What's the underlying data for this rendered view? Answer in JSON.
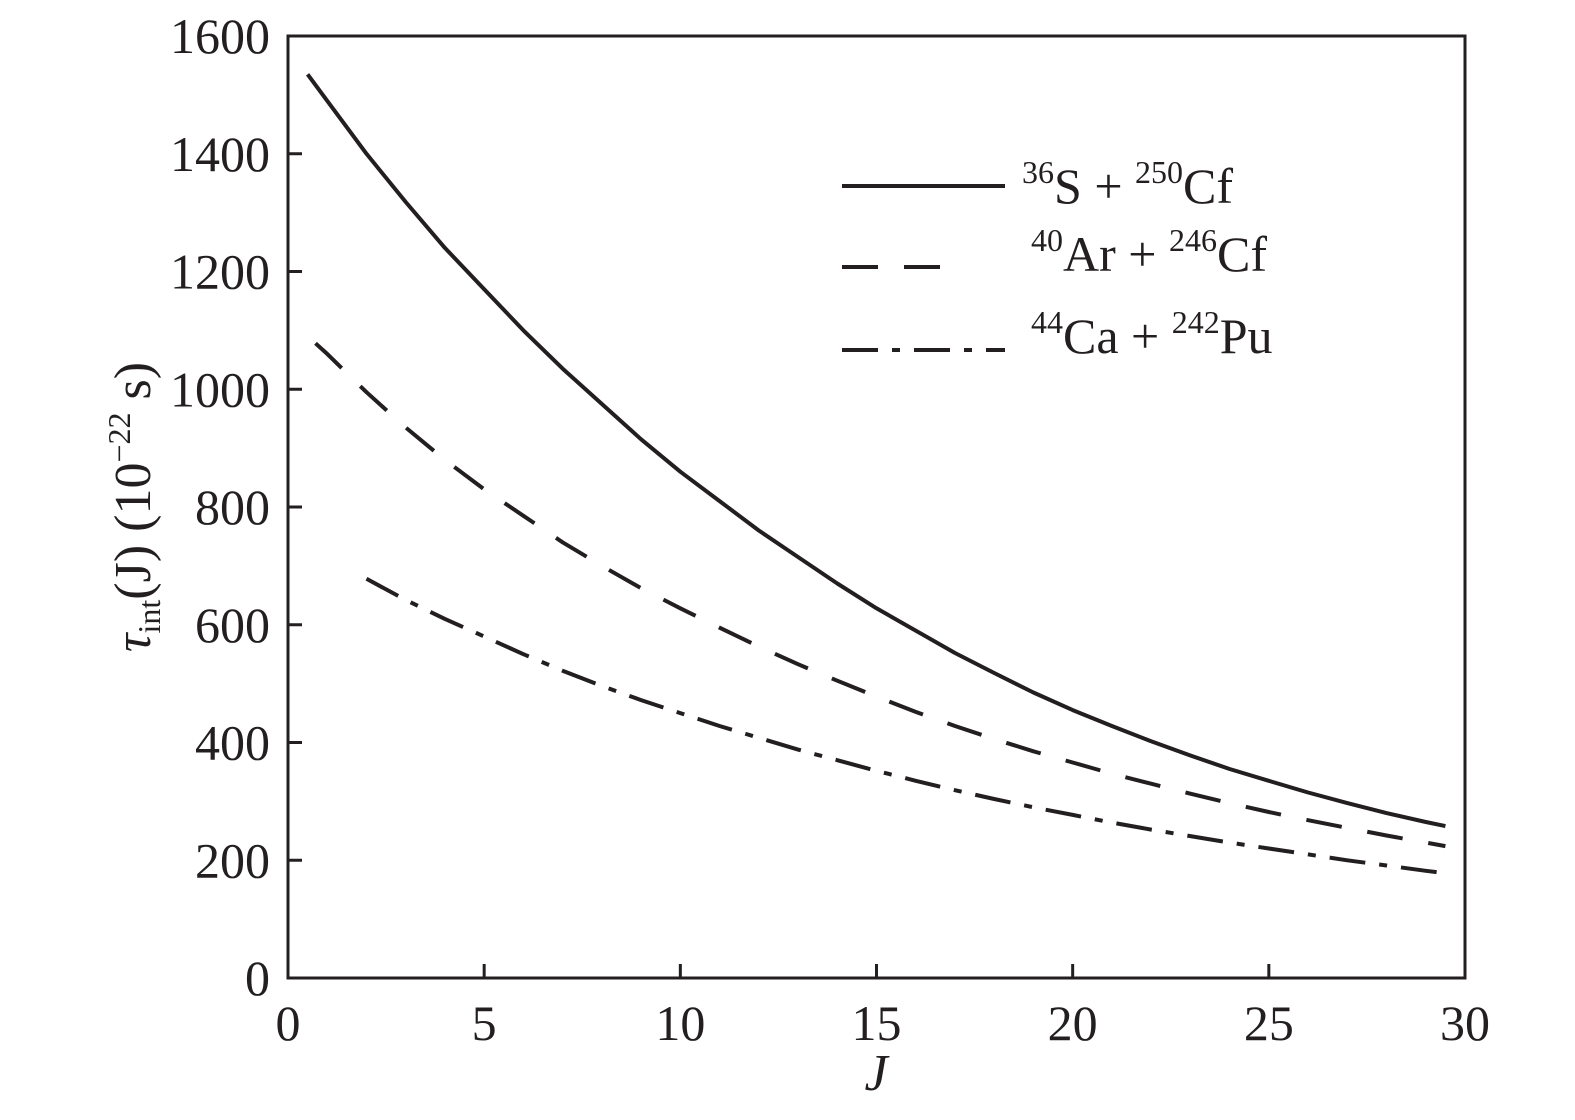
{
  "chart_data": {
    "type": "line",
    "xlabel": "J",
    "ylabel": {
      "symbol": "τ",
      "subscript": "int",
      "main": "(J) (10",
      "exponent": "−22",
      "unit_tail": " s)"
    },
    "xlim": [
      0,
      30
    ],
    "ylim": [
      0,
      1600
    ],
    "xticks": [
      0,
      5,
      10,
      15,
      20,
      25,
      30
    ],
    "yticks": [
      0,
      200,
      400,
      600,
      800,
      1000,
      1200,
      1400,
      1600
    ],
    "grid": false,
    "legend_position": "top-right",
    "series": [
      {
        "name": "36S + 250Cf",
        "legend": {
          "mass1": "36",
          "el1": "S",
          "plus": " + ",
          "mass2": "250",
          "el2": "Cf"
        },
        "style": "solid",
        "color": "#231f20",
        "x": [
          0.5,
          1,
          2,
          3,
          4,
          5,
          6,
          7,
          8,
          9,
          10,
          11,
          12,
          13,
          14,
          15,
          16,
          17,
          18,
          19,
          20,
          21,
          22,
          23,
          24,
          25,
          26,
          27,
          28,
          29,
          29.5
        ],
        "y": [
          1535,
          1490,
          1400,
          1318,
          1240,
          1170,
          1100,
          1035,
          975,
          915,
          860,
          810,
          760,
          715,
          670,
          628,
          590,
          552,
          518,
          485,
          455,
          428,
          402,
          378,
          355,
          335,
          315,
          297,
          280,
          265,
          258
        ]
      },
      {
        "name": "40Ar + 246Cf",
        "legend": {
          "mass1": "40",
          "el1": "Ar",
          "plus": " + ",
          "mass2": "246",
          "el2": "Cf"
        },
        "style": "dashed",
        "color": "#231f20",
        "x": [
          0.7,
          1,
          2,
          3,
          4,
          5,
          6,
          7,
          8,
          9,
          10,
          11,
          12,
          13,
          14,
          15,
          16,
          17,
          18,
          19,
          20,
          21,
          22,
          23,
          24,
          25,
          26,
          27,
          28,
          29,
          29.5
        ],
        "y": [
          1078,
          1060,
          995,
          935,
          880,
          830,
          785,
          740,
          700,
          662,
          628,
          595,
          563,
          533,
          505,
          478,
          452,
          428,
          406,
          385,
          366,
          347,
          330,
          313,
          297,
          282,
          268,
          255,
          242,
          230,
          224
        ]
      },
      {
        "name": "44Ca + 242Pu",
        "legend": {
          "mass1": "44",
          "el1": "Ca",
          "plus": " + ",
          "mass2": "242",
          "el2": "Pu"
        },
        "style": "dashdot",
        "color": "#231f20",
        "x": [
          2,
          3,
          4,
          5,
          6,
          7,
          8,
          9,
          10,
          11,
          12,
          13,
          14,
          15,
          16,
          17,
          18,
          19,
          20,
          21,
          22,
          23,
          24,
          25,
          26,
          27,
          28,
          29,
          29.5
        ],
        "y": [
          678,
          642,
          610,
          580,
          550,
          522,
          496,
          472,
          450,
          428,
          408,
          388,
          370,
          352,
          335,
          319,
          304,
          290,
          277,
          264,
          252,
          241,
          230,
          220,
          210,
          200,
          191,
          182,
          178
        ]
      }
    ]
  }
}
